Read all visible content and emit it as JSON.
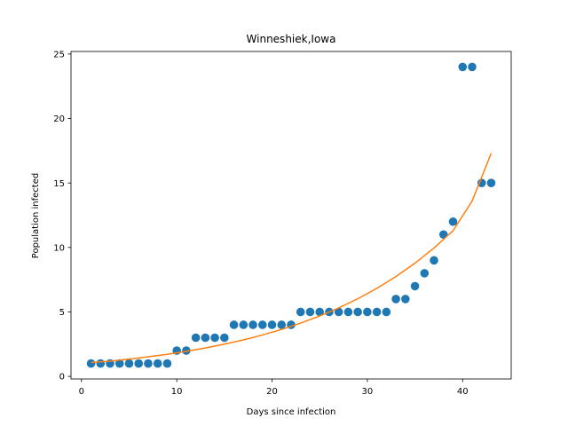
{
  "chart_data": {
    "type": "scatter",
    "title": "Winneshiek,Iowa",
    "xlabel": "Days since infection",
    "ylabel": "Population infected",
    "xlim": [
      -1.1,
      45.1
    ],
    "ylim": [
      -0.2,
      25.2
    ],
    "xticks": [
      0,
      10,
      20,
      30,
      40
    ],
    "yticks": [
      0,
      5,
      10,
      15,
      20,
      25
    ],
    "grid": false,
    "series": [
      {
        "kind": "scatter",
        "color": "#1f77b4",
        "x": [
          1,
          2,
          3,
          4,
          5,
          6,
          7,
          8,
          9,
          10,
          11,
          12,
          13,
          14,
          15,
          16,
          17,
          18,
          19,
          20,
          21,
          22,
          23,
          24,
          25,
          26,
          27,
          28,
          29,
          30,
          31,
          32,
          33,
          34,
          35,
          36,
          37,
          38,
          39,
          40,
          41,
          42,
          43
        ],
        "y": [
          1,
          1,
          1,
          1,
          1,
          1,
          1,
          1,
          1,
          2,
          2,
          3,
          3,
          3,
          3,
          4,
          4,
          4,
          4,
          4,
          4,
          4,
          5,
          5,
          5,
          5,
          5,
          5,
          5,
          5,
          5,
          5,
          6,
          6,
          7,
          8,
          9,
          11,
          12,
          24,
          24,
          15,
          15
        ]
      },
      {
        "kind": "line",
        "color": "#ff7f0e",
        "x": [
          1,
          3,
          5,
          7,
          9,
          11,
          13,
          15,
          17,
          19,
          21,
          23,
          25,
          27,
          29,
          31,
          33,
          35,
          37,
          39,
          41,
          43
        ],
        "y": [
          1.08,
          1.18,
          1.34,
          1.52,
          1.71,
          1.94,
          2.2,
          2.5,
          2.83,
          3.21,
          3.64,
          4.13,
          4.68,
          5.31,
          6.02,
          6.83,
          7.74,
          8.78,
          9.96,
          11.3,
          13.6,
          17.3
        ]
      }
    ]
  }
}
